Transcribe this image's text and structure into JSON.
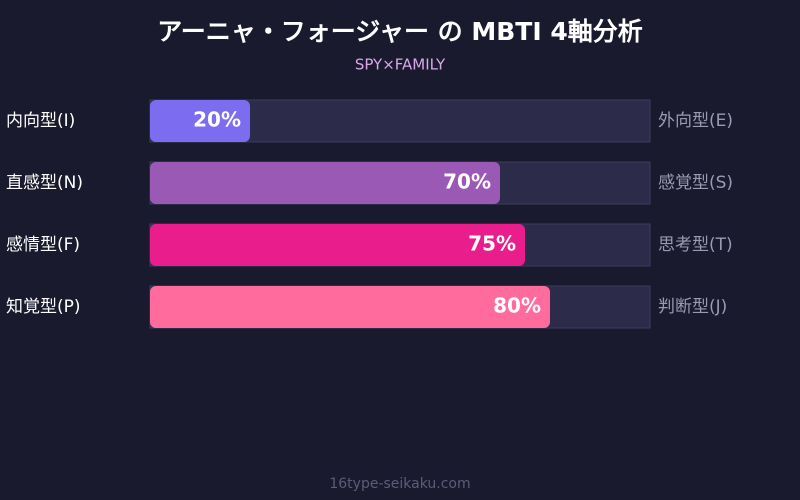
{
  "chart_data": {
    "type": "bar",
    "orientation": "horizontal",
    "title": "アーニャ・フォージャー の MBTI 4軸分析",
    "subtitle": "SPY×FAMILY",
    "categories": [
      "内向型(I)",
      "直感型(N)",
      "感情型(F)",
      "知覚型(P)"
    ],
    "opposite_categories": [
      "外向型(E)",
      "感覚型(S)",
      "思考型(T)",
      "判断型(J)"
    ],
    "values": [
      20,
      70,
      75,
      80
    ],
    "value_labels": [
      "20%",
      "70%",
      "75%",
      "80%"
    ],
    "colors": [
      "#7b6cf0",
      "#9b59b6",
      "#e91e8c",
      "#ff6b9d"
    ],
    "xlim": [
      0,
      100
    ]
  },
  "footer": "16type-seikaku.com"
}
